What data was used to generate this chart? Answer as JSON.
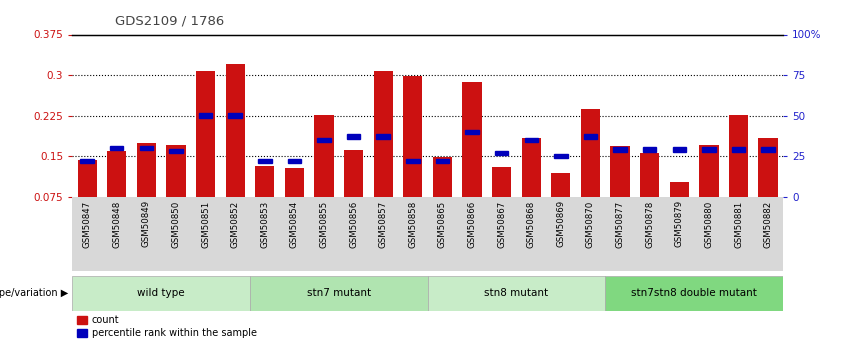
{
  "title": "GDS2109 / 1786",
  "samples": [
    "GSM50847",
    "GSM50848",
    "GSM50849",
    "GSM50850",
    "GSM50851",
    "GSM50852",
    "GSM50853",
    "GSM50854",
    "GSM50855",
    "GSM50856",
    "GSM50857",
    "GSM50858",
    "GSM50865",
    "GSM50866",
    "GSM50867",
    "GSM50868",
    "GSM50869",
    "GSM50870",
    "GSM50877",
    "GSM50878",
    "GSM50879",
    "GSM50880",
    "GSM50881",
    "GSM50882"
  ],
  "red_values": [
    0.142,
    0.16,
    0.174,
    0.171,
    0.308,
    0.321,
    0.131,
    0.128,
    0.226,
    0.161,
    0.308,
    0.298,
    0.148,
    0.287,
    0.129,
    0.184,
    0.118,
    0.238,
    0.169,
    0.156,
    0.103,
    0.17,
    0.226,
    0.184
  ],
  "blue_pct": [
    22,
    30,
    30,
    28,
    50,
    50,
    22,
    22,
    35,
    37,
    37,
    22,
    22,
    40,
    27,
    35,
    25,
    37,
    29,
    29,
    29,
    29,
    29,
    29
  ],
  "groups": [
    {
      "label": "wild type",
      "start": 0,
      "end": 6
    },
    {
      "label": "stn7 mutant",
      "start": 6,
      "end": 12
    },
    {
      "label": "stn8 mutant",
      "start": 12,
      "end": 18
    },
    {
      "label": "stn7stn8 double mutant",
      "start": 18,
      "end": 24
    }
  ],
  "group_colors": [
    "#c8ecc8",
    "#b0e4b0",
    "#c8ecc8",
    "#80d880"
  ],
  "ymin": 0.075,
  "ymax": 0.375,
  "yticks_left": [
    0.075,
    0.15,
    0.225,
    0.3,
    0.375
  ],
  "ytick_labels_left": [
    "0.075",
    "0.15",
    "0.225",
    "0.3",
    "0.375"
  ],
  "yticks_right": [
    0,
    25,
    50,
    75,
    100
  ],
  "ytick_labels_right": [
    "0",
    "25",
    "50",
    "75",
    "100%"
  ],
  "bar_color": "#cc1111",
  "blue_color": "#0000bb",
  "left_axis_color": "#cc1111",
  "right_axis_color": "#2222cc",
  "title_color": "#444444",
  "xtick_bg": "#d8d8d8"
}
